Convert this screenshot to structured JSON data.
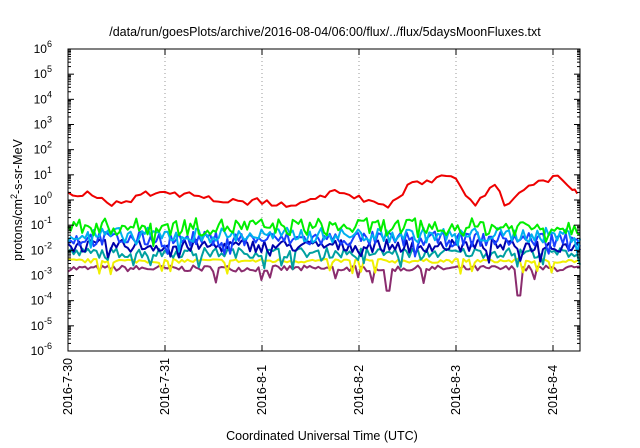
{
  "chart_data": {
    "type": "line",
    "title": "/data/run/goesPlots/archive/2016-08-04/06:00/flux/../flux/5daysMoonFluxes.txt",
    "xlabel": "Coordinated Universal Time (UTC)",
    "ylabel": {
      "pre": "protons/cm",
      "sup": "2",
      "post": "-s-sr-MeV"
    },
    "yscale": "log",
    "ylim": [
      1e-06,
      1000000.0
    ],
    "yticks": [
      {
        "base": "10",
        "exp": "-6",
        "value": 1e-06
      },
      {
        "base": "10",
        "exp": "-5",
        "value": 1e-05
      },
      {
        "base": "10",
        "exp": "-4",
        "value": 0.0001
      },
      {
        "base": "10",
        "exp": "-3",
        "value": 0.001
      },
      {
        "base": "10",
        "exp": "-2",
        "value": 0.01
      },
      {
        "base": "10",
        "exp": "-1",
        "value": 0.1
      },
      {
        "base": "10",
        "exp": "0",
        "value": 1
      },
      {
        "base": "10",
        "exp": "1",
        "value": 10
      },
      {
        "base": "10",
        "exp": "2",
        "value": 100
      },
      {
        "base": "10",
        "exp": "3",
        "value": 1000
      },
      {
        "base": "10",
        "exp": "4",
        "value": 10000
      },
      {
        "base": "10",
        "exp": "5",
        "value": 100000
      },
      {
        "base": "10",
        "exp": "6",
        "value": 1000000
      }
    ],
    "xlim": [
      "2016-07-30T00:00",
      "2016-08-04T06:00"
    ],
    "xticks": [
      {
        "label": "2016-7-30",
        "day": 0
      },
      {
        "label": "2016-7-31",
        "day": 1
      },
      {
        "label": "2016-8-1",
        "day": 2
      },
      {
        "label": "2016-8-2",
        "day": 3
      },
      {
        "label": "2016-8-3",
        "day": 4
      },
      {
        "label": "2016-8-4",
        "day": 5
      }
    ],
    "grid": "vertical dotted at date ticks",
    "series": [
      {
        "color": "#ee0000",
        "x_days": [
          0,
          0.1,
          0.2,
          0.3,
          0.4,
          0.5,
          0.6,
          0.7,
          0.8,
          0.9,
          1.0,
          1.1,
          1.2,
          1.3,
          1.4,
          1.5,
          1.6,
          1.7,
          1.8,
          1.9,
          2.0,
          2.1,
          2.2,
          2.3,
          2.4,
          2.5,
          2.6,
          2.7,
          2.8,
          2.9,
          3.0,
          3.1,
          3.2,
          3.3,
          3.4,
          3.5,
          3.6,
          3.7,
          3.8,
          3.9,
          4.0,
          4.1,
          4.2,
          4.3,
          4.4,
          4.5,
          4.6,
          4.7,
          4.8,
          4.9,
          5.0,
          5.1,
          5.2,
          5.25
        ],
        "values": [
          2,
          1.4,
          2.2,
          1.2,
          0.8,
          0.9,
          0.9,
          1.5,
          2.2,
          1.8,
          2.1,
          2.0,
          1.8,
          1.5,
          1.2,
          0.9,
          0.8,
          1.1,
          0.9,
          1.0,
          0.7,
          0.6,
          0.8,
          0.6,
          0.8,
          1.1,
          1.5,
          2.2,
          1.9,
          1.6,
          1.5,
          1.0,
          0.7,
          0.5,
          1.2,
          4.0,
          5.5,
          6.0,
          8.0,
          9.0,
          7.0,
          1.5,
          0.6,
          1.5,
          4.0,
          0.6,
          1.2,
          2.5,
          4.0,
          6.0,
          9.0,
          6.0,
          2.5,
          1.8
        ]
      },
      {
        "color": "#00ee00",
        "level": 0.085,
        "spread": 0.35
      },
      {
        "color": "#00b0ee",
        "level": 0.04,
        "spread": 0.3
      },
      {
        "color": "#1a40ff",
        "level": 0.028,
        "spread": 0.3
      },
      {
        "color": "#0000aa",
        "level": 0.015,
        "spread": 0.25
      },
      {
        "color": "#00a0a0",
        "level": 0.008,
        "spread": 0.2
      },
      {
        "color": "#f0f000",
        "level": 0.0038,
        "spread": 0.08
      },
      {
        "color": "#8a2c6e",
        "level": 0.0019,
        "spread": 0.12
      }
    ]
  }
}
